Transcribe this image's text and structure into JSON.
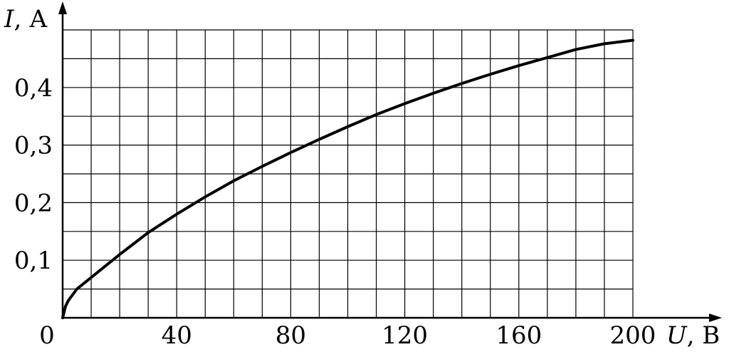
{
  "chart_data": {
    "type": "line",
    "xlabel": {
      "symbol": "U",
      "unit": ", В"
    },
    "ylabel": {
      "symbol": "I",
      "unit": ", А"
    },
    "xlim": [
      0,
      200
    ],
    "ylim": [
      0,
      0.5
    ],
    "x_ticks": [
      "0",
      "40",
      "80",
      "120",
      "160",
      "200"
    ],
    "x_tick_values": [
      0,
      40,
      80,
      120,
      160,
      200
    ],
    "y_ticks": [
      "0,1",
      "0,2",
      "0,3",
      "0,4"
    ],
    "y_tick_values": [
      0.1,
      0.2,
      0.3,
      0.4
    ],
    "grid": true,
    "grid_step_x": 10,
    "grid_step_y": 0.05,
    "series": [
      {
        "x": [
          0,
          1,
          2,
          5,
          10,
          20,
          30,
          40,
          50,
          60,
          70,
          80,
          90,
          100,
          110,
          120,
          130,
          140,
          150,
          160,
          170,
          180,
          190,
          200
        ],
        "y": [
          0,
          0.02,
          0.03,
          0.05,
          0.07,
          0.11,
          0.148,
          0.18,
          0.21,
          0.238,
          0.263,
          0.287,
          0.31,
          0.332,
          0.353,
          0.372,
          0.39,
          0.407,
          0.423,
          0.438,
          0.452,
          0.466,
          0.476,
          0.482
        ]
      }
    ],
    "colors": {
      "line": "#000000",
      "grid": "#000000"
    }
  }
}
